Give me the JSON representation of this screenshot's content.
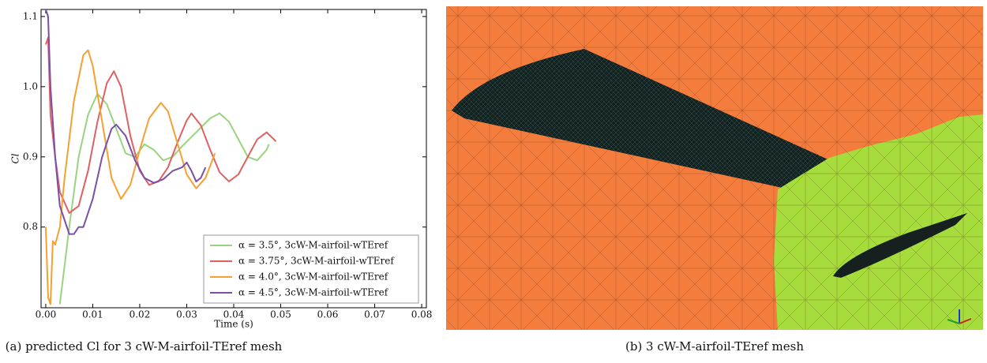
{
  "chart_data": {
    "type": "line",
    "x_label": "Time (s)",
    "y_label": "Cl",
    "xlim": [
      -0.001,
      0.081
    ],
    "ylim": [
      0.685,
      1.11
    ],
    "xticks": [
      {
        "value": 0,
        "label": "0.00"
      },
      {
        "value": 0.01,
        "label": "0.01"
      },
      {
        "value": 0.02,
        "label": "0.02"
      },
      {
        "value": 0.03,
        "label": "0.03"
      },
      {
        "value": 0.04,
        "label": "0.04"
      },
      {
        "value": 0.05,
        "label": "0.05"
      },
      {
        "value": 0.06,
        "label": "0.06"
      },
      {
        "value": 0.07,
        "label": "0.07"
      },
      {
        "value": 0.08,
        "label": "0.08"
      }
    ],
    "yticks": [
      0.8,
      0.9,
      {
        "value": 1.0,
        "label": "1.0"
      },
      1.1
    ],
    "legend": "lower right",
    "series": [
      {
        "name": "α = 3.5°, 3cW-M-airfoil-wTEref",
        "color": "#98d47f",
        "x": [
          0.003,
          0.005,
          0.007,
          0.009,
          0.011,
          0.013,
          0.015,
          0.017,
          0.019,
          0.021,
          0.023,
          0.025,
          0.027,
          0.029,
          0.032,
          0.035,
          0.037,
          0.039,
          0.041,
          0.043,
          0.045,
          0.047,
          0.0475
        ],
        "values": [
          0.69,
          0.8,
          0.9,
          0.96,
          0.99,
          0.975,
          0.94,
          0.905,
          0.9,
          0.918,
          0.91,
          0.895,
          0.9,
          0.915,
          0.935,
          0.955,
          0.962,
          0.95,
          0.925,
          0.9,
          0.895,
          0.91,
          0.918
        ]
      },
      {
        "name": "α = 3.75°, 3cW-M-airfoil-wTEref",
        "color": "#e06060",
        "x": [
          0,
          0.0005,
          0.001,
          0.002,
          0.003,
          0.005,
          0.007,
          0.009,
          0.011,
          0.013,
          0.0145,
          0.016,
          0.018,
          0.02,
          0.022,
          0.024,
          0.026,
          0.028,
          0.03,
          0.031,
          0.033,
          0.035,
          0.037,
          0.039,
          0.041,
          0.043,
          0.045,
          0.047,
          0.049
        ],
        "values": [
          1.06,
          1.07,
          0.96,
          0.9,
          0.85,
          0.82,
          0.83,
          0.88,
          0.95,
          1.005,
          1.022,
          1.0,
          0.93,
          0.88,
          0.86,
          0.865,
          0.885,
          0.92,
          0.952,
          0.962,
          0.945,
          0.91,
          0.878,
          0.865,
          0.875,
          0.9,
          0.925,
          0.935,
          0.922
        ]
      },
      {
        "name": "α = 4.0°, 3cW-M-airfoil-wTEref",
        "color": "#f5a030",
        "x": [
          0,
          0.0005,
          0.001,
          0.0015,
          0.002,
          0.003,
          0.004,
          0.006,
          0.008,
          0.009,
          0.01,
          0.012,
          0.014,
          0.016,
          0.018,
          0.02,
          0.022,
          0.0245,
          0.026,
          0.028,
          0.03,
          0.032,
          0.034,
          0.036
        ],
        "values": [
          0.8,
          0.7,
          0.69,
          0.78,
          0.775,
          0.8,
          0.87,
          0.98,
          1.045,
          1.052,
          1.03,
          0.95,
          0.87,
          0.84,
          0.86,
          0.91,
          0.955,
          0.977,
          0.965,
          0.92,
          0.875,
          0.855,
          0.87,
          0.905
        ]
      },
      {
        "name": "α = 4.5°, 3cW-M-airfoil-wTEref",
        "color": "#7b4fa8",
        "x": [
          0,
          0.0005,
          0.001,
          0.002,
          0.003,
          0.005,
          0.006,
          0.007,
          0.008,
          0.01,
          0.012,
          0.014,
          0.015,
          0.017,
          0.019,
          0.021,
          0.023,
          0.025,
          0.027,
          0.029,
          0.03,
          0.031,
          0.032,
          0.033,
          0.034
        ],
        "values": [
          1.11,
          1.1,
          1.0,
          0.9,
          0.83,
          0.79,
          0.79,
          0.8,
          0.8,
          0.84,
          0.9,
          0.94,
          0.946,
          0.93,
          0.895,
          0.87,
          0.863,
          0.868,
          0.88,
          0.885,
          0.892,
          0.88,
          0.865,
          0.87,
          0.885
        ]
      }
    ]
  },
  "captions": [
    "(a) predicted Cl for 3 cW-M-airfoil-TEref mesh",
    "(b) 3 cW-M-airfoil-TEref mesh"
  ]
}
